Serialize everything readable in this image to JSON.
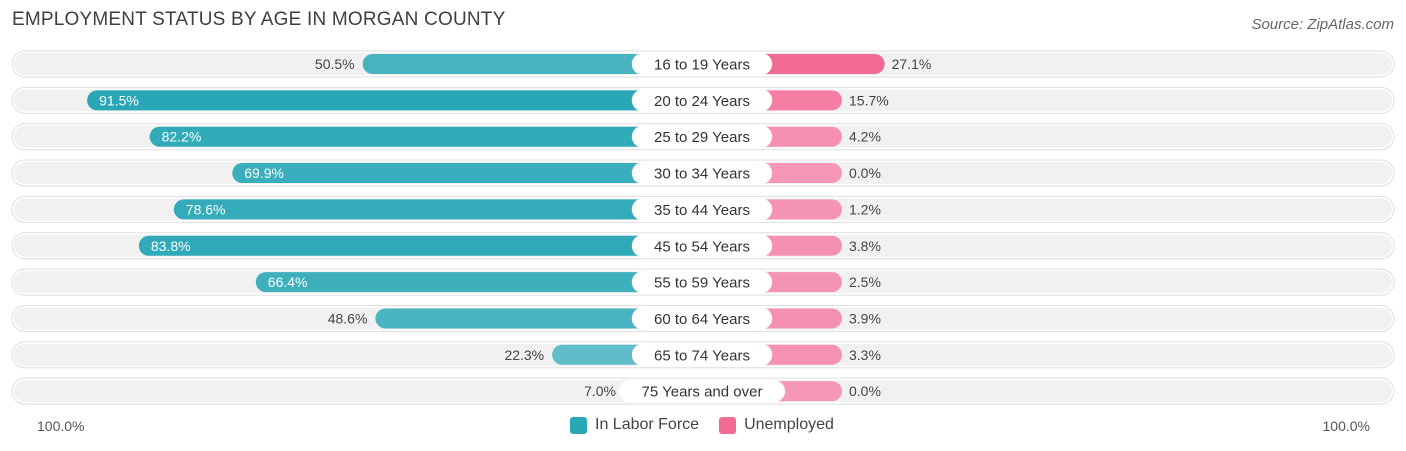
{
  "title": "EMPLOYMENT STATUS BY AGE IN MORGAN COUNTY",
  "source": "Source: ZipAtlas.com",
  "axis": {
    "left_label": "100.0%",
    "right_label": "100.0%"
  },
  "colors": {
    "labor_strong": "#2aa7b7",
    "labor_light": "#86cdd6",
    "unemployed_strong": "#f26b94",
    "unemployed_light": "#f7aac3",
    "row_bg": "#f1f1f1"
  },
  "chart_data": {
    "type": "bar",
    "orientation": "horizontal-diverging",
    "title": "EMPLOYMENT STATUS BY AGE IN MORGAN COUNTY",
    "categories": [
      "16 to 19 Years",
      "20 to 24 Years",
      "25 to 29 Years",
      "30 to 34 Years",
      "35 to 44 Years",
      "45 to 54 Years",
      "55 to 59 Years",
      "60 to 64 Years",
      "65 to 74 Years",
      "75 Years and over"
    ],
    "series": [
      {
        "name": "In Labor Force",
        "values": [
          50.5,
          91.5,
          82.2,
          69.9,
          78.6,
          83.8,
          66.4,
          48.6,
          22.3,
          7.0
        ],
        "labels": [
          "50.5%",
          "91.5%",
          "82.2%",
          "69.9%",
          "78.6%",
          "83.8%",
          "66.4%",
          "48.6%",
          "22.3%",
          "7.0%"
        ]
      },
      {
        "name": "Unemployed",
        "values": [
          27.1,
          15.7,
          4.2,
          0.0,
          1.2,
          3.8,
          2.5,
          3.9,
          3.3,
          0.0
        ],
        "labels": [
          "27.1%",
          "15.7%",
          "4.2%",
          "0.0%",
          "1.2%",
          "3.8%",
          "2.5%",
          "3.9%",
          "3.3%",
          "0.0%"
        ]
      }
    ],
    "xlim": [
      0,
      100
    ],
    "legend": {
      "position": "bottom-center",
      "entries": [
        "In Labor Force",
        "Unemployed"
      ]
    }
  }
}
